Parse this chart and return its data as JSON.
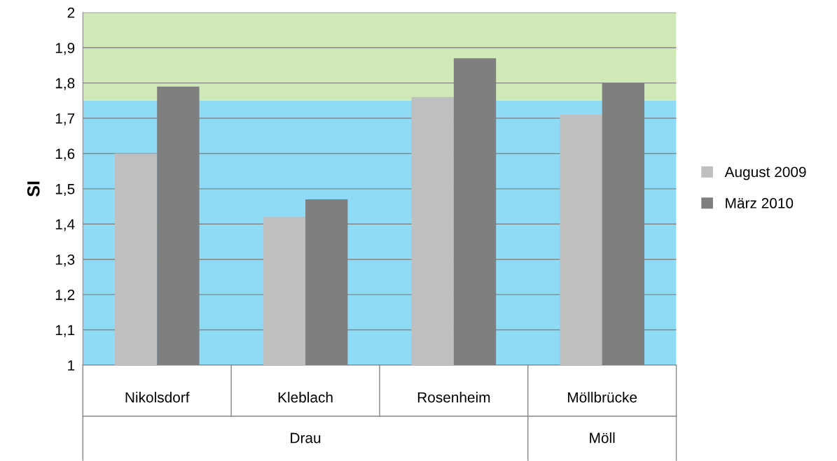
{
  "chart_data": {
    "type": "bar",
    "ylabel": "SI",
    "categories": [
      "Nikolsdorf",
      "Kleblach",
      "Rosenheim",
      "Möllbrücke"
    ],
    "series": [
      {
        "name": "August 2009",
        "color": "#bfbfbf",
        "values": [
          1.6,
          1.42,
          1.76,
          1.71
        ]
      },
      {
        "name": "März 2010",
        "color": "#7f7f7f",
        "values": [
          1.79,
          1.47,
          1.87,
          1.8
        ]
      }
    ],
    "ylim": [
      1,
      2
    ],
    "yticks": [
      {
        "value": 1,
        "label": "1"
      },
      {
        "value": 1.1,
        "label": "1,1"
      },
      {
        "value": 1.2,
        "label": "1,2"
      },
      {
        "value": 1.3,
        "label": "1,3"
      },
      {
        "value": 1.4,
        "label": "1,4"
      },
      {
        "value": 1.5,
        "label": "1,5"
      },
      {
        "value": 1.6,
        "label": "1,6"
      },
      {
        "value": 1.7,
        "label": "1,7"
      },
      {
        "value": 1.8,
        "label": "1,8"
      },
      {
        "value": 1.9,
        "label": "1,9"
      },
      {
        "value": 2,
        "label": "2"
      }
    ],
    "bands": [
      {
        "axis": "y",
        "from": 1,
        "to": 1.75,
        "color": "#8fdaf5"
      },
      {
        "axis": "y",
        "from": 1.75,
        "to": 2,
        "color": "#d1e9b9"
      }
    ],
    "annotations": [
      "Drau",
      "Möll"
    ],
    "grid": "y",
    "legend": "right"
  }
}
